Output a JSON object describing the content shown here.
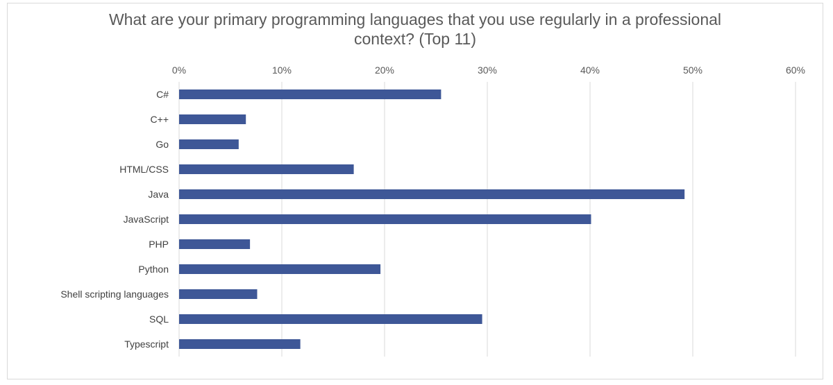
{
  "chart_data": {
    "type": "bar",
    "orientation": "horizontal",
    "title_lines": [
      "What are your primary programming languages that you use regularly in a professional",
      "context? (Top 11)"
    ],
    "categories": [
      "C#",
      "C++",
      "Go",
      "HTML/CSS",
      "Java",
      "JavaScript",
      "PHP",
      "Python",
      "Shell scripting languages",
      "SQL",
      "Typescript"
    ],
    "values": [
      25.5,
      6.5,
      5.8,
      17.0,
      49.2,
      40.1,
      6.9,
      19.6,
      7.6,
      29.5,
      11.8
    ],
    "x_ticks": [
      "0%",
      "10%",
      "20%",
      "30%",
      "40%",
      "50%",
      "60%"
    ],
    "xlim": [
      0,
      60
    ],
    "grid": true,
    "bar_color": "#3e5797",
    "grid_color": "#d9d9d9"
  }
}
